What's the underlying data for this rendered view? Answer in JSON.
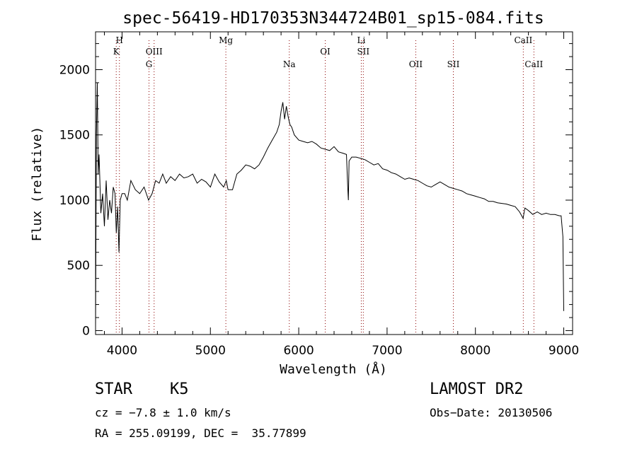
{
  "chart_data": {
    "type": "line",
    "title": "spec-56419-HD170353N344724B01_sp15-084.fits",
    "xlabel": "Wavelength (Å)",
    "ylabel": "Flux (relative)",
    "xlim": [
      3700,
      9100
    ],
    "ylim": [
      -30,
      2290
    ],
    "x_ticks": [
      4000,
      5000,
      6000,
      7000,
      8000,
      9000
    ],
    "y_ticks": [
      0,
      500,
      1000,
      1500,
      2000
    ],
    "grid": false,
    "legend": "none",
    "line_color": "#000000",
    "marker_color": "#8b0000",
    "spectral_lines": [
      {
        "label": "H",
        "wavelength": 3970,
        "row": 0
      },
      {
        "label": "K",
        "wavelength": 3934,
        "row": 1
      },
      {
        "label": "OIII",
        "wavelength": 4363,
        "row": 1
      },
      {
        "label": "G",
        "wavelength": 4305,
        "row": 2
      },
      {
        "label": "Mg",
        "wavelength": 5175,
        "row": 0
      },
      {
        "label": "Na",
        "wavelength": 5893,
        "row": 2
      },
      {
        "label": "OI",
        "wavelength": 6300,
        "row": 1
      },
      {
        "label": "Li",
        "wavelength": 6708,
        "row": 0
      },
      {
        "label": "SII",
        "wavelength": 6731,
        "row": 1
      },
      {
        "label": "OII",
        "wavelength": 7325,
        "row": 2
      },
      {
        "label": "SII",
        "wavelength": 7750,
        "row": 2
      },
      {
        "label": "CaII",
        "wavelength": 8542,
        "row": 0
      },
      {
        "label": "CaII",
        "wavelength": 8662,
        "row": 2
      }
    ],
    "series": [
      {
        "x": [
          3700,
          3710,
          3720,
          3730,
          3740,
          3760,
          3780,
          3800,
          3820,
          3840,
          3860,
          3880,
          3900,
          3920,
          3935,
          3950,
          3965,
          3980,
          4000,
          4030,
          4060,
          4100,
          4150,
          4200,
          4250,
          4300,
          4340,
          4380,
          4420,
          4460,
          4500,
          4550,
          4600,
          4650,
          4700,
          4750,
          4800,
          4850,
          4900,
          4950,
          5000,
          5050,
          5100,
          5150,
          5180,
          5200,
          5250,
          5300,
          5350,
          5400,
          5450,
          5500,
          5550,
          5600,
          5650,
          5700,
          5750,
          5780,
          5800,
          5820,
          5840,
          5860,
          5880,
          5900,
          5920,
          5950,
          6000,
          6050,
          6100,
          6150,
          6200,
          6250,
          6300,
          6350,
          6400,
          6450,
          6500,
          6540,
          6555,
          6562,
          6570,
          6600,
          6650,
          6700,
          6750,
          6800,
          6850,
          6900,
          6950,
          7000,
          7050,
          7100,
          7150,
          7200,
          7250,
          7300,
          7350,
          7400,
          7450,
          7500,
          7550,
          7600,
          7650,
          7700,
          7750,
          7800,
          7850,
          7900,
          7950,
          8000,
          8050,
          8100,
          8150,
          8200,
          8250,
          8300,
          8350,
          8400,
          8450,
          8500,
          8540,
          8560,
          8600,
          8650,
          8700,
          8750,
          8800,
          8850,
          8900,
          8950,
          8970,
          8990,
          9000
        ],
        "y": [
          20,
          1500,
          1900,
          1200,
          1350,
          900,
          1050,
          800,
          1150,
          850,
          1000,
          900,
          1100,
          1050,
          750,
          950,
          600,
          1000,
          1050,
          1050,
          1000,
          1150,
          1080,
          1050,
          1100,
          1000,
          1050,
          1150,
          1130,
          1200,
          1130,
          1180,
          1150,
          1200,
          1170,
          1180,
          1200,
          1130,
          1160,
          1140,
          1100,
          1200,
          1140,
          1100,
          1150,
          1080,
          1080,
          1200,
          1230,
          1270,
          1260,
          1240,
          1270,
          1330,
          1400,
          1460,
          1520,
          1580,
          1680,
          1750,
          1620,
          1720,
          1640,
          1580,
          1560,
          1500,
          1460,
          1450,
          1440,
          1450,
          1430,
          1400,
          1390,
          1380,
          1410,
          1370,
          1360,
          1350,
          1100,
          1000,
          1300,
          1330,
          1330,
          1320,
          1310,
          1290,
          1270,
          1280,
          1240,
          1230,
          1210,
          1200,
          1180,
          1160,
          1170,
          1160,
          1150,
          1130,
          1110,
          1100,
          1120,
          1140,
          1120,
          1100,
          1090,
          1080,
          1070,
          1050,
          1040,
          1030,
          1020,
          1010,
          990,
          990,
          980,
          975,
          970,
          960,
          950,
          910,
          860,
          940,
          920,
          890,
          910,
          890,
          900,
          890,
          890,
          880,
          880,
          720,
          150
        ]
      }
    ]
  },
  "info": {
    "object_class": "STAR",
    "subclass": "K5",
    "survey": "LAMOST DR2",
    "cz": "cz = −7.8 ± 1.0 km/s",
    "obs_date": "Obs−Date: 20130506",
    "coords": "RA = 255.09199, DEC =  35.77899"
  }
}
